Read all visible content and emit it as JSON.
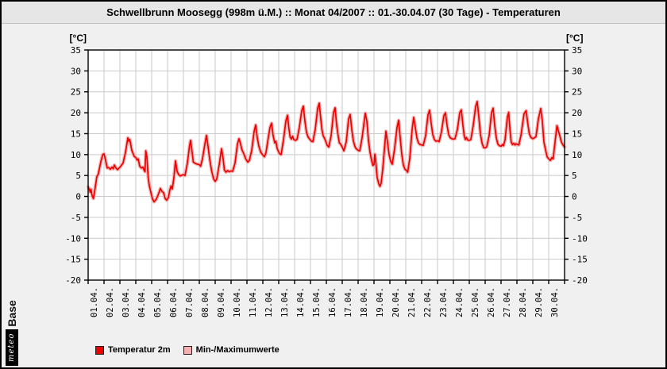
{
  "title": "Schwellbrunn Moosegg (998m ü.M.) :: Monat 04/2007 :: 01.-30.04.07 (30 Tage) - Temperaturen",
  "y_axis": {
    "unit": "[°C]",
    "max": 35,
    "min": -20,
    "step": 5,
    "ticks": [
      35,
      30,
      25,
      20,
      15,
      10,
      5,
      0,
      -5,
      -10,
      -15,
      -20
    ]
  },
  "x_axis": {
    "labels": [
      "01.04.",
      "02.04.",
      "03.04.",
      "04.04.",
      "05.04.",
      "06.04.",
      "07.04.",
      "08.04.",
      "09.04.",
      "10.04.",
      "11.04.",
      "12.04.",
      "13.04.",
      "14.04.",
      "15.04.",
      "16.04.",
      "17.04.",
      "18.04.",
      "19.04.",
      "20.04.",
      "21.04.",
      "22.04.",
      "23.04.",
      "24.04.",
      "25.04.",
      "26.04.",
      "27.04.",
      "28.04.",
      "29.04.",
      "30.04."
    ]
  },
  "legend": {
    "items": [
      {
        "label": "Temperatur 2m",
        "color": "#ee0000"
      },
      {
        "label": "Min-/Maximumwerte",
        "color": "#f4b0b0"
      }
    ]
  },
  "logo": {
    "meteo": "meteo",
    "base": "Base"
  },
  "colors": {
    "line": "#ee0000",
    "band": "#f5b4b4",
    "grid": "#c9c9c9",
    "axis": "#000000",
    "plot_bg": "#ffffff",
    "page_bg": "#f0f0f0",
    "titlebar_bg": "#e6e6e6",
    "frame": "#000000"
  },
  "chart_data": {
    "type": "line",
    "title": "Schwellbrunn Moosegg (998m ü.M.) :: Monat 04/2007 :: 01.-30.04.07 (30 Tage) - Temperaturen",
    "xlabel": "",
    "ylabel": "[°C]",
    "ylim": [
      -20,
      35
    ],
    "x_unit": "days since 01.04.2007 00:00 (0–30)",
    "grid": true,
    "legend_position": "bottom-left",
    "series": [
      {
        "name": "Temperatur 2m",
        "points": [
          [
            0.0,
            2.3
          ],
          [
            0.08,
            1.6
          ],
          [
            0.13,
            1.0
          ],
          [
            0.18,
            1.7
          ],
          [
            0.25,
            0.2
          ],
          [
            0.33,
            -0.5
          ],
          [
            0.42,
            1.5
          ],
          [
            0.55,
            4.8
          ],
          [
            0.63,
            5.2
          ],
          [
            0.7,
            6.5
          ],
          [
            0.8,
            8.3
          ],
          [
            0.92,
            10.0
          ],
          [
            1.0,
            10.2
          ],
          [
            1.1,
            8.6
          ],
          [
            1.2,
            6.8
          ],
          [
            1.3,
            6.9
          ],
          [
            1.4,
            6.5
          ],
          [
            1.5,
            7.0
          ],
          [
            1.58,
            6.6
          ],
          [
            1.65,
            7.5
          ],
          [
            1.75,
            6.8
          ],
          [
            1.85,
            6.4
          ],
          [
            1.95,
            6.8
          ],
          [
            2.05,
            7.2
          ],
          [
            2.2,
            8.0
          ],
          [
            2.35,
            10.5
          ],
          [
            2.5,
            14.0
          ],
          [
            2.56,
            13.2
          ],
          [
            2.62,
            13.6
          ],
          [
            2.75,
            11.0
          ],
          [
            2.9,
            9.6
          ],
          [
            3.0,
            9.3
          ],
          [
            3.08,
            8.7
          ],
          [
            3.15,
            9.0
          ],
          [
            3.25,
            7.2
          ],
          [
            3.35,
            6.8
          ],
          [
            3.45,
            7.0
          ],
          [
            3.52,
            6.3
          ],
          [
            3.58,
            5.9
          ],
          [
            3.63,
            10.9
          ],
          [
            3.7,
            9.5
          ],
          [
            3.78,
            4.5
          ],
          [
            3.85,
            2.6
          ],
          [
            3.95,
            1.0
          ],
          [
            4.05,
            -0.6
          ],
          [
            4.15,
            -1.3
          ],
          [
            4.3,
            -0.6
          ],
          [
            4.45,
            0.8
          ],
          [
            4.55,
            1.9
          ],
          [
            4.65,
            1.2
          ],
          [
            4.75,
            0.9
          ],
          [
            4.85,
            -0.5
          ],
          [
            4.95,
            -0.9
          ],
          [
            5.05,
            -0.3
          ],
          [
            5.15,
            1.6
          ],
          [
            5.22,
            2.5
          ],
          [
            5.3,
            1.8
          ],
          [
            5.4,
            4.5
          ],
          [
            5.5,
            8.5
          ],
          [
            5.6,
            6.0
          ],
          [
            5.7,
            5.2
          ],
          [
            5.8,
            4.9
          ],
          [
            5.9,
            5.1
          ],
          [
            6.0,
            5.2
          ],
          [
            6.1,
            5.0
          ],
          [
            6.25,
            8.0
          ],
          [
            6.38,
            12.0
          ],
          [
            6.45,
            13.4
          ],
          [
            6.55,
            10.5
          ],
          [
            6.62,
            8.2
          ],
          [
            6.75,
            7.9
          ],
          [
            6.88,
            7.7
          ],
          [
            7.0,
            7.6
          ],
          [
            7.08,
            7.2
          ],
          [
            7.2,
            9.0
          ],
          [
            7.35,
            12.5
          ],
          [
            7.45,
            14.6
          ],
          [
            7.55,
            12.0
          ],
          [
            7.65,
            9.0
          ],
          [
            7.78,
            6.0
          ],
          [
            7.9,
            4.2
          ],
          [
            8.0,
            3.6
          ],
          [
            8.1,
            4.2
          ],
          [
            8.25,
            7.5
          ],
          [
            8.4,
            11.4
          ],
          [
            8.5,
            9.0
          ],
          [
            8.58,
            6.3
          ],
          [
            8.68,
            5.8
          ],
          [
            8.78,
            6.2
          ],
          [
            8.88,
            5.9
          ],
          [
            9.0,
            6.1
          ],
          [
            9.1,
            6.0
          ],
          [
            9.25,
            8.0
          ],
          [
            9.4,
            12.5
          ],
          [
            9.5,
            13.8
          ],
          [
            9.58,
            12.8
          ],
          [
            9.68,
            11.2
          ],
          [
            9.8,
            10.2
          ],
          [
            9.92,
            9.0
          ],
          [
            10.05,
            8.2
          ],
          [
            10.15,
            8.6
          ],
          [
            10.3,
            11.0
          ],
          [
            10.45,
            15.5
          ],
          [
            10.55,
            17.1
          ],
          [
            10.65,
            14.0
          ],
          [
            10.75,
            12.0
          ],
          [
            10.88,
            10.5
          ],
          [
            11.0,
            9.9
          ],
          [
            11.1,
            9.5
          ],
          [
            11.2,
            10.5
          ],
          [
            11.3,
            13.0
          ],
          [
            11.45,
            16.5
          ],
          [
            11.55,
            17.5
          ],
          [
            11.65,
            14.5
          ],
          [
            11.75,
            12.8
          ],
          [
            11.82,
            13.2
          ],
          [
            11.9,
            11.5
          ],
          [
            12.05,
            10.2
          ],
          [
            12.15,
            10.0
          ],
          [
            12.3,
            13.5
          ],
          [
            12.45,
            18.0
          ],
          [
            12.55,
            19.4
          ],
          [
            12.65,
            16.0
          ],
          [
            12.72,
            14.2
          ],
          [
            12.8,
            13.7
          ],
          [
            12.87,
            14.4
          ],
          [
            12.95,
            13.6
          ],
          [
            13.05,
            13.4
          ],
          [
            13.15,
            13.6
          ],
          [
            13.3,
            16.5
          ],
          [
            13.45,
            20.5
          ],
          [
            13.55,
            21.6
          ],
          [
            13.65,
            18.0
          ],
          [
            13.75,
            15.3
          ],
          [
            13.85,
            14.2
          ],
          [
            13.95,
            13.7
          ],
          [
            14.05,
            13.2
          ],
          [
            14.15,
            13.1
          ],
          [
            14.3,
            16.0
          ],
          [
            14.45,
            21.0
          ],
          [
            14.55,
            22.3
          ],
          [
            14.65,
            18.5
          ],
          [
            14.72,
            16.0
          ],
          [
            14.8,
            14.5
          ],
          [
            14.87,
            14.0
          ],
          [
            14.95,
            13.3
          ],
          [
            15.05,
            12.2
          ],
          [
            15.15,
            11.8
          ],
          [
            15.3,
            14.5
          ],
          [
            15.45,
            20.0
          ],
          [
            15.55,
            21.2
          ],
          [
            15.65,
            17.0
          ],
          [
            15.75,
            14.3
          ],
          [
            15.82,
            12.8
          ],
          [
            15.9,
            12.5
          ],
          [
            16.0,
            11.8
          ],
          [
            16.1,
            10.9
          ],
          [
            16.25,
            13.0
          ],
          [
            16.4,
            18.5
          ],
          [
            16.5,
            19.6
          ],
          [
            16.6,
            16.0
          ],
          [
            16.7,
            13.3
          ],
          [
            16.8,
            11.9
          ],
          [
            16.88,
            11.4
          ],
          [
            17.0,
            11.0
          ],
          [
            17.1,
            10.9
          ],
          [
            17.25,
            14.0
          ],
          [
            17.45,
            19.9
          ],
          [
            17.55,
            18.0
          ],
          [
            17.65,
            13.5
          ],
          [
            17.75,
            10.5
          ],
          [
            17.85,
            8.6
          ],
          [
            17.93,
            7.4
          ],
          [
            18.0,
            7.6
          ],
          [
            18.05,
            10.1
          ],
          [
            18.12,
            8.0
          ],
          [
            18.2,
            4.5
          ],
          [
            18.3,
            3.0
          ],
          [
            18.38,
            2.4
          ],
          [
            18.45,
            3.2
          ],
          [
            18.55,
            6.5
          ],
          [
            18.65,
            11.0
          ],
          [
            18.75,
            15.6
          ],
          [
            18.85,
            13.0
          ],
          [
            18.95,
            10.0
          ],
          [
            19.05,
            8.4
          ],
          [
            19.15,
            7.7
          ],
          [
            19.3,
            11.5
          ],
          [
            19.45,
            16.5
          ],
          [
            19.55,
            18.2
          ],
          [
            19.65,
            14.0
          ],
          [
            19.75,
            10.0
          ],
          [
            19.85,
            7.5
          ],
          [
            19.95,
            6.5
          ],
          [
            20.05,
            6.2
          ],
          [
            20.12,
            5.8
          ],
          [
            20.25,
            9.0
          ],
          [
            20.4,
            16.0
          ],
          [
            20.5,
            18.9
          ],
          [
            20.6,
            16.5
          ],
          [
            20.7,
            14.0
          ],
          [
            20.8,
            12.8
          ],
          [
            20.9,
            12.4
          ],
          [
            21.0,
            12.3
          ],
          [
            21.1,
            12.2
          ],
          [
            21.25,
            14.5
          ],
          [
            21.4,
            19.5
          ],
          [
            21.5,
            20.6
          ],
          [
            21.6,
            17.5
          ],
          [
            21.7,
            14.8
          ],
          [
            21.8,
            13.6
          ],
          [
            21.9,
            13.2
          ],
          [
            22.0,
            13.3
          ],
          [
            22.1,
            13.1
          ],
          [
            22.25,
            15.5
          ],
          [
            22.4,
            19.3
          ],
          [
            22.5,
            20.0
          ],
          [
            22.6,
            17.0
          ],
          [
            22.7,
            14.8
          ],
          [
            22.8,
            14.0
          ],
          [
            22.9,
            13.8
          ],
          [
            23.0,
            13.7
          ],
          [
            23.1,
            13.8
          ],
          [
            23.25,
            16.0
          ],
          [
            23.4,
            20.0
          ],
          [
            23.5,
            20.7
          ],
          [
            23.6,
            17.0
          ],
          [
            23.68,
            14.5
          ],
          [
            23.75,
            13.6
          ],
          [
            23.82,
            14.1
          ],
          [
            23.9,
            13.5
          ],
          [
            24.0,
            13.4
          ],
          [
            24.1,
            13.6
          ],
          [
            24.25,
            17.0
          ],
          [
            24.4,
            21.5
          ],
          [
            24.5,
            22.7
          ],
          [
            24.6,
            19.0
          ],
          [
            24.7,
            15.0
          ],
          [
            24.8,
            12.8
          ],
          [
            24.9,
            11.7
          ],
          [
            25.0,
            11.6
          ],
          [
            25.1,
            11.9
          ],
          [
            25.25,
            14.5
          ],
          [
            25.4,
            20.0
          ],
          [
            25.5,
            21.1
          ],
          [
            25.6,
            17.0
          ],
          [
            25.7,
            14.0
          ],
          [
            25.8,
            12.5
          ],
          [
            25.9,
            12.1
          ],
          [
            26.0,
            12.0
          ],
          [
            26.08,
            12.4
          ],
          [
            26.15,
            12.1
          ],
          [
            26.25,
            13.5
          ],
          [
            26.4,
            19.0
          ],
          [
            26.48,
            20.1
          ],
          [
            26.56,
            16.0
          ],
          [
            26.64,
            13.0
          ],
          [
            26.72,
            12.4
          ],
          [
            26.8,
            12.7
          ],
          [
            26.88,
            12.3
          ],
          [
            26.95,
            12.6
          ],
          [
            27.05,
            12.4
          ],
          [
            27.12,
            12.3
          ],
          [
            27.25,
            14.5
          ],
          [
            27.45,
            19.8
          ],
          [
            27.58,
            20.5
          ],
          [
            27.68,
            17.5
          ],
          [
            27.78,
            15.0
          ],
          [
            27.88,
            14.1
          ],
          [
            28.0,
            13.8
          ],
          [
            28.1,
            14.0
          ],
          [
            28.2,
            14.3
          ],
          [
            28.35,
            18.5
          ],
          [
            28.5,
            21.0
          ],
          [
            28.6,
            18.0
          ],
          [
            28.7,
            13.0
          ],
          [
            28.8,
            11.2
          ],
          [
            28.9,
            9.5
          ],
          [
            29.0,
            9.0
          ],
          [
            29.1,
            8.6
          ],
          [
            29.2,
            9.3
          ],
          [
            29.28,
            9.0
          ],
          [
            29.4,
            13.0
          ],
          [
            29.52,
            16.9
          ],
          [
            29.6,
            15.8
          ],
          [
            29.7,
            14.5
          ],
          [
            29.8,
            13.0
          ],
          [
            29.9,
            12.3
          ],
          [
            30.0,
            11.8
          ]
        ]
      },
      {
        "name": "Min-/Maximumwerte",
        "derived": "envelope around Temperatur 2m, approx ±0.6 °C, drawn as light band behind the line",
        "envelope_delta": 0.6
      }
    ]
  }
}
